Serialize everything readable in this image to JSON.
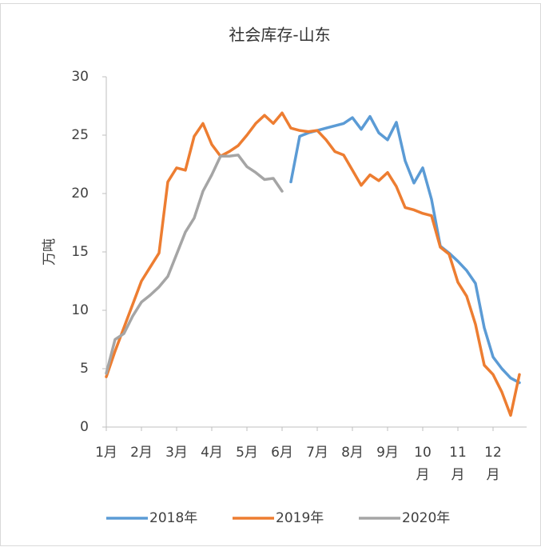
{
  "chart_data": {
    "type": "line",
    "title": "社会库存-山东",
    "y_label": "万吨",
    "categories": [
      "1月",
      null,
      null,
      null,
      "2月",
      null,
      null,
      null,
      "3月",
      null,
      null,
      null,
      "4月",
      null,
      null,
      null,
      "5月",
      null,
      null,
      null,
      "6月",
      null,
      null,
      null,
      "7月",
      null,
      null,
      null,
      "8月",
      null,
      null,
      null,
      "9月",
      null,
      null,
      null,
      "10月",
      null,
      null,
      null,
      "11月",
      null,
      null,
      null,
      "12月",
      null,
      null,
      null
    ],
    "ylim": [
      0,
      30
    ],
    "yticks": [
      0,
      5,
      10,
      15,
      20,
      25,
      30
    ],
    "series": [
      {
        "name": "2018年",
        "color": "#5b9bd5",
        "values": [
          null,
          null,
          null,
          null,
          null,
          null,
          null,
          null,
          null,
          null,
          null,
          null,
          null,
          null,
          null,
          null,
          null,
          null,
          null,
          null,
          null,
          21.0,
          24.9,
          25.2,
          25.4,
          25.6,
          25.8,
          26.0,
          26.5,
          25.5,
          26.6,
          25.2,
          24.6,
          26.1,
          22.8,
          20.9,
          22.2,
          19.5,
          15.5,
          14.9,
          14.2,
          13.4,
          12.3,
          8.5,
          6.0,
          5.0,
          4.2,
          3.8
        ]
      },
      {
        "name": "2019年",
        "color": "#ed7d31",
        "values": [
          4.3,
          6.5,
          8.5,
          10.5,
          12.5,
          13.7,
          14.9,
          21.0,
          22.2,
          22.0,
          24.9,
          26.0,
          24.2,
          23.2,
          23.6,
          24.1,
          25.0,
          26.0,
          26.7,
          26.0,
          26.9,
          25.6,
          25.4,
          25.3,
          25.4,
          24.6,
          23.6,
          23.3,
          22.0,
          20.7,
          21.6,
          21.1,
          21.8,
          20.6,
          18.8,
          18.6,
          18.3,
          18.1,
          15.4,
          14.8,
          12.4,
          11.2,
          8.8,
          5.3,
          4.5,
          3.0,
          1.0,
          4.5
        ]
      },
      {
        "name": "2020年",
        "color": "#a5a5a5",
        "values": [
          4.6,
          7.5,
          8.0,
          9.5,
          10.7,
          11.3,
          12.0,
          12.9,
          14.8,
          16.7,
          17.9,
          20.2,
          21.6,
          23.2,
          23.2,
          23.3,
          22.3,
          21.8,
          21.2,
          21.3,
          20.2,
          null,
          null,
          null,
          null,
          null,
          null,
          null,
          null,
          null,
          null,
          null,
          null,
          null,
          null,
          null,
          null,
          null,
          null,
          null,
          null,
          null,
          null,
          null,
          null,
          null,
          null,
          null
        ]
      }
    ]
  }
}
